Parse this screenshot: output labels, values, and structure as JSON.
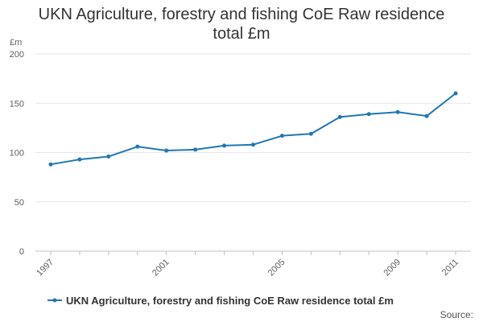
{
  "chart_data": {
    "type": "line",
    "title_lines": [
      "UKN Agriculture, forestry and fishing CoE Raw residence",
      "total £m"
    ],
    "ylabel": "£m",
    "xlabel": "",
    "x": [
      1997,
      1998,
      1999,
      2000,
      2001,
      2002,
      2003,
      2004,
      2005,
      2006,
      2007,
      2008,
      2009,
      2010,
      2011
    ],
    "x_tick_labels": [
      "1997",
      "2001",
      "2005",
      "2009",
      "2011"
    ],
    "series": [
      {
        "name": "UKN Agriculture, forestry and fishing CoE Raw residence total £m",
        "values": [
          88,
          93,
          96,
          106,
          102,
          103,
          107,
          108,
          117,
          119,
          136,
          139,
          141,
          137,
          160
        ],
        "color": "#1f77b4"
      }
    ],
    "ylim": [
      0,
      200
    ],
    "y_ticks": [
      "0",
      "50",
      "100",
      "150",
      "200"
    ],
    "grid": true,
    "legend_position": "bottom",
    "source_label": "Source:"
  }
}
